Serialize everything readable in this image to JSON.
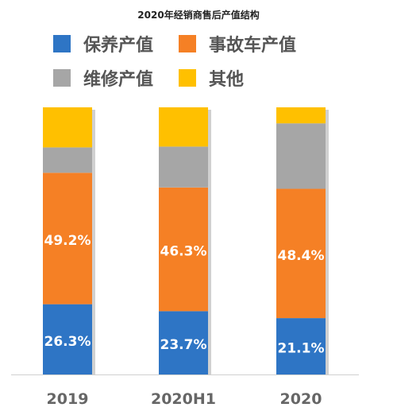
{
  "chart_data": {
    "type": "bar",
    "stacked": true,
    "title": "2020年经销商售后产值结构",
    "categories": [
      "2019",
      "2020H1",
      "2020"
    ],
    "series": [
      {
        "name": "保养产值",
        "color": "#2E75C5",
        "values": [
          26.3,
          23.7,
          21.1
        ],
        "labels": [
          "26.3%",
          "23.7%",
          "21.1%"
        ]
      },
      {
        "name": "事故车产值",
        "color": "#F58025",
        "values": [
          49.2,
          46.3,
          48.4
        ],
        "labels": [
          "49.2%",
          "46.3%",
          "48.4%"
        ]
      },
      {
        "name": "维修产值",
        "color": "#A6A6A6",
        "values": [
          9.5,
          15.3,
          24.5
        ]
      },
      {
        "name": "其他",
        "color": "#FFC000",
        "values": [
          15.0,
          14.7,
          6.0
        ]
      }
    ],
    "ylim": [
      0,
      100
    ],
    "grid": false,
    "legend_position": "top"
  }
}
